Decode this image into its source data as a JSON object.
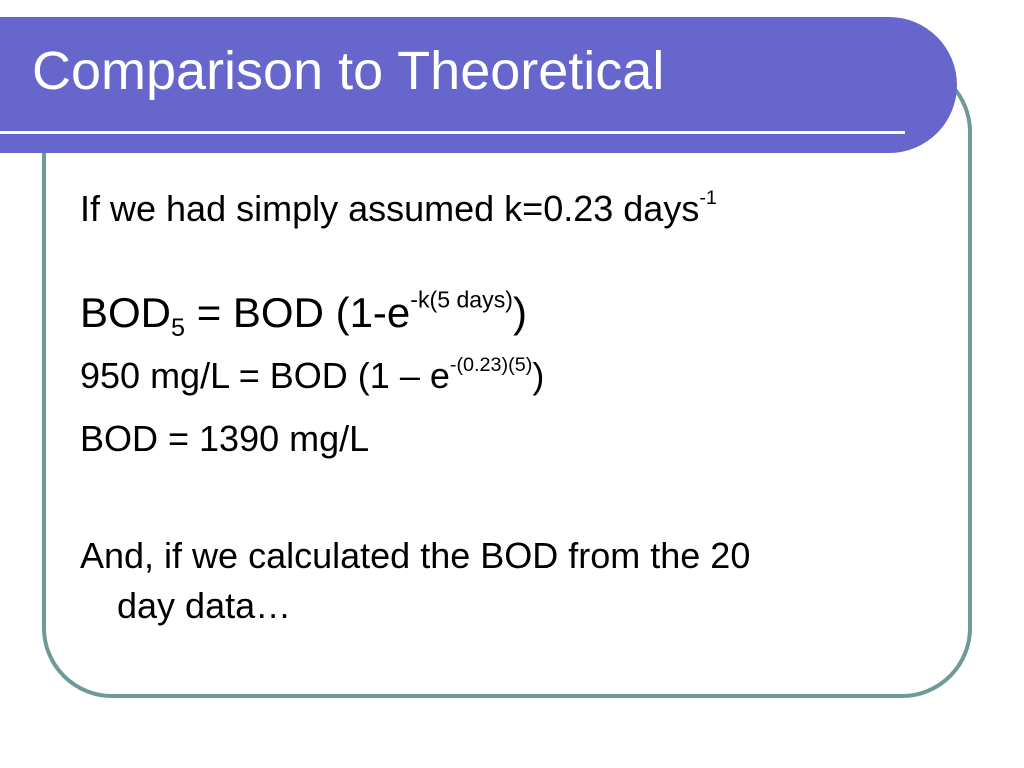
{
  "slide": {
    "title": "Comparison to Theoretical",
    "line1": {
      "text": "If we had simply assumed k=0.23 days",
      "sup": "-1"
    },
    "line2": {
      "a": "BOD",
      "sub": "5",
      "b": " = BOD (1-e",
      "sup": "-k(5 days)",
      "c": ")"
    },
    "line3": {
      "a": "950 mg/L = BOD (1 – e",
      "sup": "-(0.23)(5)",
      "c": ")"
    },
    "line4": {
      "text": "BOD = 1390 mg/L"
    },
    "line5": {
      "text": "And, if we calculated the BOD from the 20"
    },
    "line6": {
      "text": "day data…"
    }
  },
  "colors": {
    "title_bar": "#6666cc",
    "frame_border": "#6f9a9a",
    "title_text": "#ffffff",
    "body_text": "#000000"
  }
}
